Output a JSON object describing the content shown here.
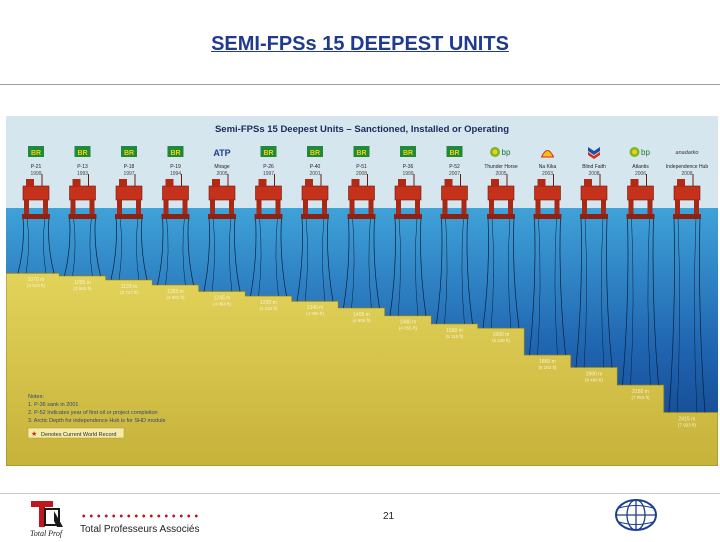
{
  "slide": {
    "title": "SEMI-FPSs 15 DEEPEST UNITS"
  },
  "poster": {
    "title": "Semi-FPSs 15 Deepest Units – Sanctioned, Installed or Operating",
    "colors": {
      "sea_top": "#3fa2d8",
      "sea_bottom": "#113f86",
      "seabed": "#d9c64a",
      "platform": "#c4321c"
    },
    "units": [
      {
        "logo": "BR",
        "name": "P-21",
        "year": "1999",
        "depth_label": "1070 m",
        "depth_ft": "(3 510 ft)"
      },
      {
        "logo": "BR",
        "name": "P-13",
        "year": "1993",
        "depth_label": "1095 m",
        "depth_ft": "(3 592 ft)"
      },
      {
        "logo": "BR",
        "name": "P-18",
        "year": "1997",
        "depth_label": "1133 m",
        "depth_ft": "(3 717 ft)"
      },
      {
        "logo": "BR",
        "name": "P-19",
        "year": "1994",
        "depth_label": "1183 m",
        "depth_ft": "(3 881 ft)"
      },
      {
        "logo": "ATP",
        "name": "Mirage",
        "year": "2005",
        "depth_label": "1245 m",
        "depth_ft": "(4 084 ft)"
      },
      {
        "logo": "BR",
        "name": "P-26",
        "year": "1997",
        "depth_label": "1290 m",
        "depth_ft": "(4 232 ft)"
      },
      {
        "logo": "BR",
        "name": "P-40",
        "year": "2001",
        "depth_label": "1340 m",
        "depth_ft": "(4 396 ft)"
      },
      {
        "logo": "BR",
        "name": "P-51",
        "year": "2008",
        "depth_label": "1405 m",
        "depth_ft": "(4 609 ft)"
      },
      {
        "logo": "BR",
        "name": "P-36",
        "year": "1999",
        "depth_label": "1480 m",
        "depth_ft": "(4 855 ft)"
      },
      {
        "logo": "BR",
        "name": "P-52",
        "year": "2007",
        "depth_label": "1560 m",
        "depth_ft": "(5 118 ft)"
      },
      {
        "logo": "bp",
        "name": "Thunder Horse",
        "year": "2005",
        "depth_label": "1600 m",
        "depth_ft": "(5 249 ft)"
      },
      {
        "logo": "shell",
        "name": "Na Kika",
        "year": "2003",
        "depth_label": "1860 m",
        "depth_ft": "(6 102 ft)"
      },
      {
        "logo": "chevron",
        "name": "Blind Faith",
        "year": "2008",
        "depth_label": "1980 m",
        "depth_ft": "(6 496 ft)"
      },
      {
        "logo": "bp",
        "name": "Atlantis",
        "year": "2006",
        "depth_label": "2150 m",
        "depth_ft": "(7 053 ft)"
      },
      {
        "logo": "anadarko",
        "name": "Independence Hub",
        "year": "2008",
        "depth_label": "2415 m",
        "depth_ft": "(7 923 ft)"
      }
    ],
    "notes": [
      "Notes:",
      "1. P-36 sank in 2001",
      "2. P-52 Indicates year of first oil or project completion",
      "3. Arctic Depth for independence Hub is for SHD module"
    ],
    "legend": "Denotes Current World Record"
  },
  "footer": {
    "logo_caption": "Total Prof",
    "association": "Total Professeurs Associés",
    "page_number": "21"
  }
}
